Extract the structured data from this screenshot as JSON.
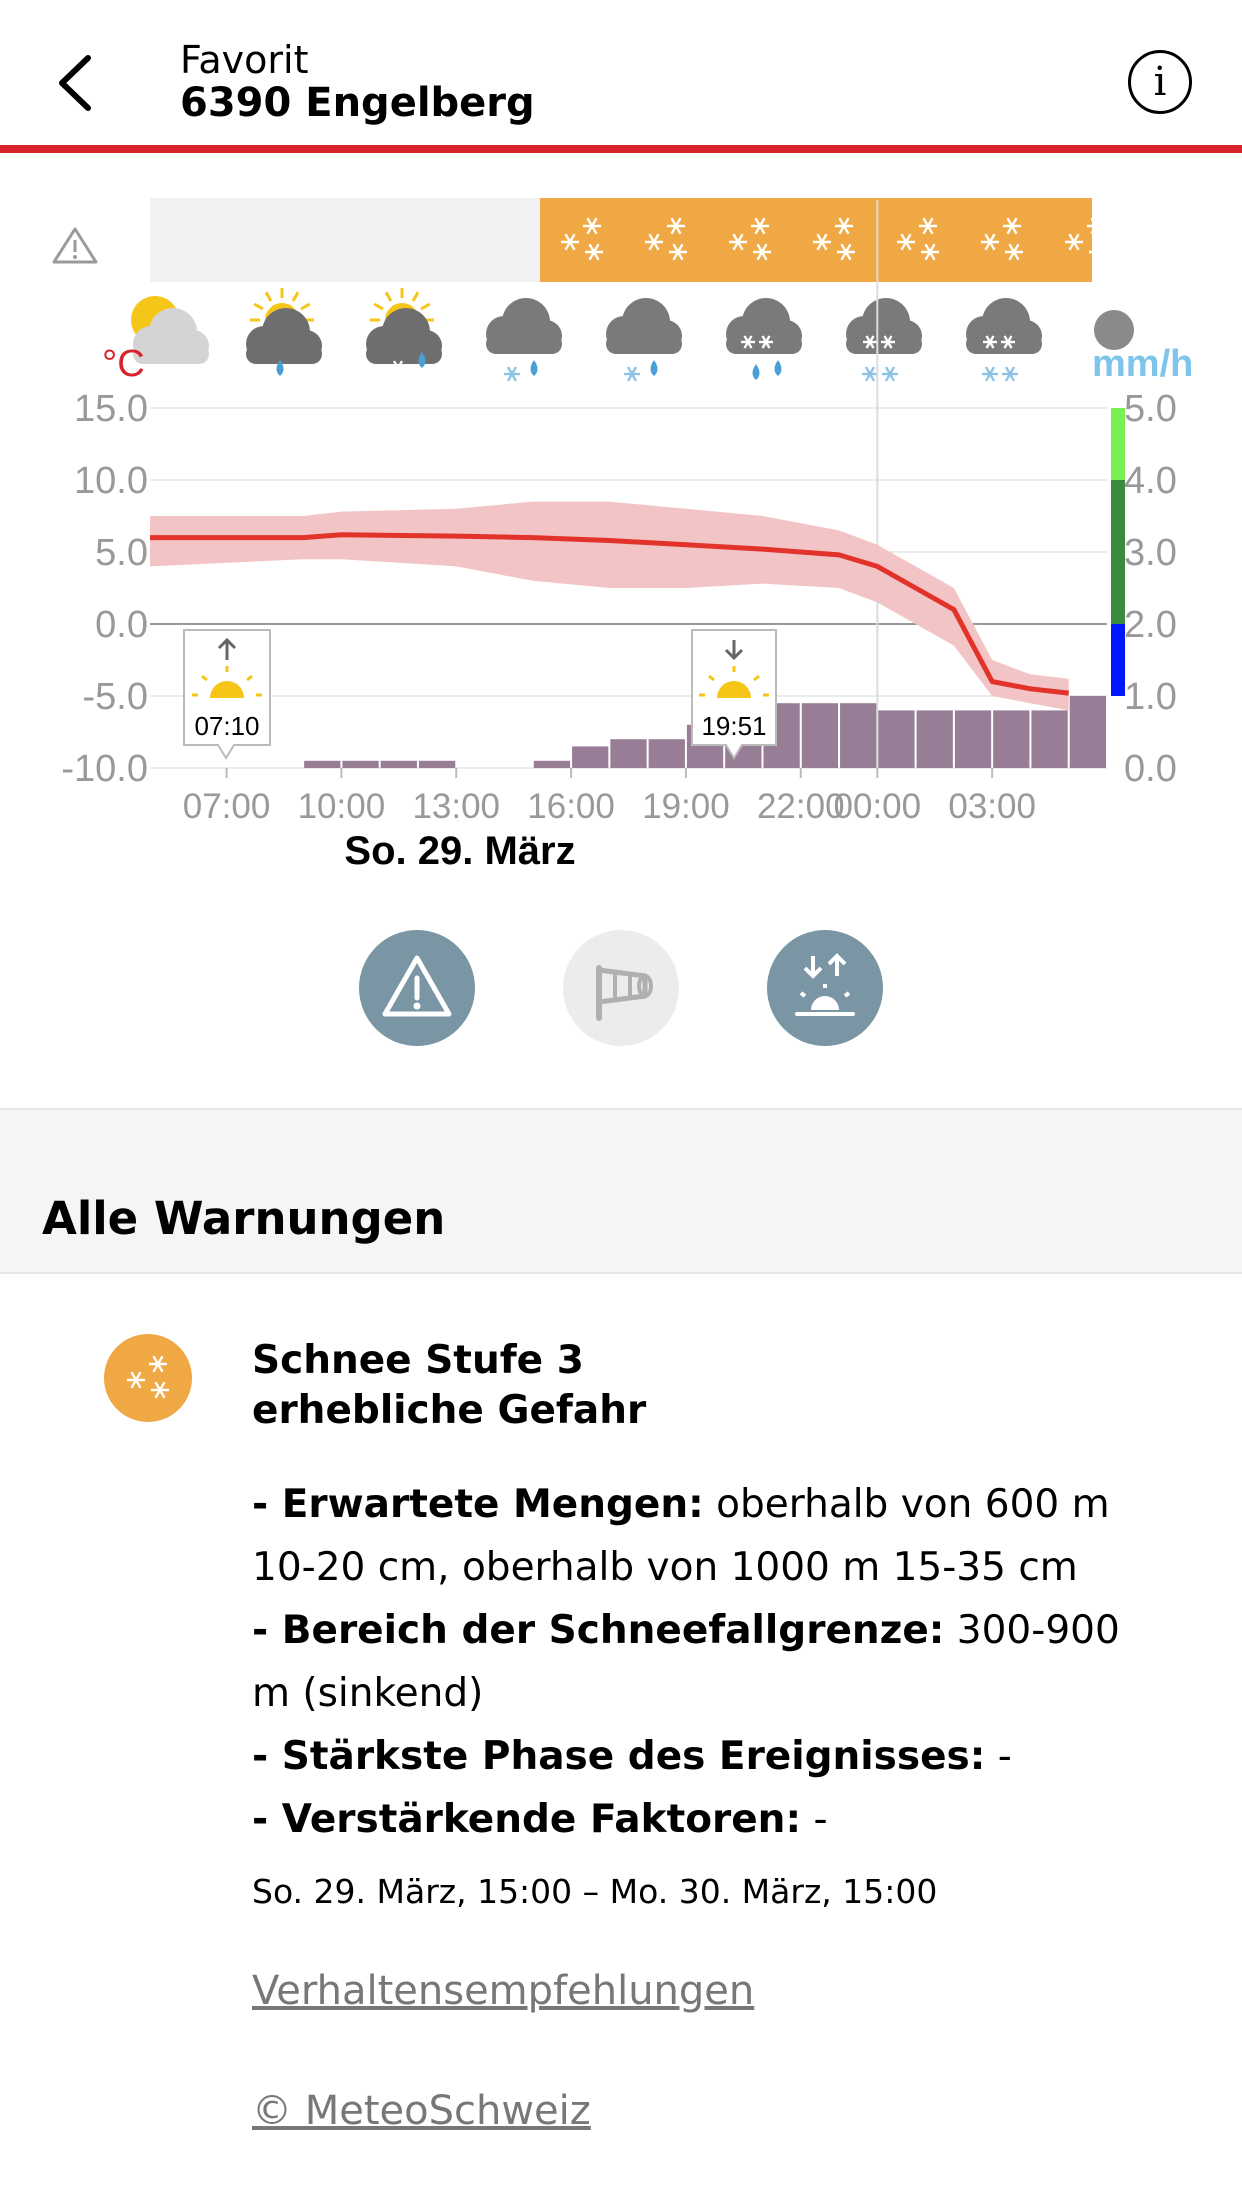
{
  "header": {
    "subtitle": "Favorit",
    "title": "6390 Engelberg"
  },
  "chart": {
    "temp_unit": "°C",
    "precip_unit": "mm/h",
    "date_label": "So. 29. März",
    "sunrise": "07:10",
    "sunset": "19:51",
    "warning_band": "snow",
    "weather_icons": [
      "sun-cloud-icon",
      "sun-cloud-rain-icon",
      "sun-cloud-snow-rain-icon",
      "cloud-snow-rain-icon",
      "cloud-snow-rain-icon",
      "cloud-snow-rain-heavy-icon",
      "cloud-snow-icon",
      "cloud-snow-icon",
      "cloud-partial-icon"
    ]
  },
  "chart_data": {
    "type": "line",
    "x_ticks": [
      "07:00",
      "10:00",
      "13:00",
      "16:00",
      "19:00",
      "22:00",
      "00:00",
      "03:00"
    ],
    "y_left_ticks": [
      "15.0",
      "10.0",
      "5.0",
      "0.0",
      "-5.0",
      "-10.0"
    ],
    "y_right_ticks": [
      "5.0",
      "4.0",
      "3.0",
      "2.0",
      "1.0",
      "0.0"
    ],
    "ylim_left": [
      -10,
      15
    ],
    "ylim_right": [
      0,
      5
    ],
    "temperature": [
      {
        "h": 5,
        "v": 6.0,
        "lo": 4.0,
        "hi": 7.5
      },
      {
        "h": 9,
        "v": 6.0,
        "lo": 4.5,
        "hi": 7.5
      },
      {
        "h": 10,
        "v": 6.2,
        "lo": 4.5,
        "hi": 7.8
      },
      {
        "h": 13,
        "v": 6.1,
        "lo": 4.0,
        "hi": 8.0
      },
      {
        "h": 15,
        "v": 6.0,
        "lo": 3.0,
        "hi": 8.5
      },
      {
        "h": 17,
        "v": 5.8,
        "lo": 2.5,
        "hi": 8.5
      },
      {
        "h": 19,
        "v": 5.5,
        "lo": 2.5,
        "hi": 8.0
      },
      {
        "h": 21,
        "v": 5.2,
        "lo": 2.8,
        "hi": 7.5
      },
      {
        "h": 23,
        "v": 4.8,
        "lo": 2.5,
        "hi": 6.5
      },
      {
        "h": 24,
        "v": 4.0,
        "lo": 1.5,
        "hi": 5.5
      },
      {
        "h": 25,
        "v": 2.5,
        "lo": 0.0,
        "hi": 4.0
      },
      {
        "h": 26,
        "v": 1.0,
        "lo": -1.5,
        "hi": 2.5
      },
      {
        "h": 27,
        "v": -4.0,
        "lo": -5.0,
        "hi": -2.5
      },
      {
        "h": 28,
        "v": -4.5,
        "lo": -5.5,
        "hi": -3.5
      },
      {
        "h": 29,
        "v": -4.8,
        "lo": -6.0,
        "hi": -3.8
      }
    ],
    "precipitation": [
      {
        "h": 9,
        "v": 0.1
      },
      {
        "h": 10,
        "v": 0.1
      },
      {
        "h": 11,
        "v": 0.1
      },
      {
        "h": 12,
        "v": 0.1
      },
      {
        "h": 15,
        "v": 0.1
      },
      {
        "h": 16,
        "v": 0.3
      },
      {
        "h": 17,
        "v": 0.4
      },
      {
        "h": 18,
        "v": 0.4
      },
      {
        "h": 19,
        "v": 0.6
      },
      {
        "h": 20,
        "v": 0.8
      },
      {
        "h": 21,
        "v": 0.9
      },
      {
        "h": 22,
        "v": 0.9
      },
      {
        "h": 23,
        "v": 0.9
      },
      {
        "h": 24,
        "v": 0.8
      },
      {
        "h": 25,
        "v": 0.8
      },
      {
        "h": 26,
        "v": 0.8
      },
      {
        "h": 27,
        "v": 0.8
      },
      {
        "h": 28,
        "v": 0.8
      },
      {
        "h": 29,
        "v": 1.0
      }
    ],
    "intensity_scale": [
      {
        "from": 0,
        "to": 1,
        "color": ""
      },
      {
        "from": 1,
        "to": 2,
        "color": "#0018ff"
      },
      {
        "from": 2,
        "to": 4,
        "color": "#3c8a3e"
      },
      {
        "from": 4,
        "to": 5,
        "color": "#79f052"
      }
    ]
  },
  "tabs": [
    {
      "name": "warnings-tab",
      "icon": "warning-icon",
      "active": true
    },
    {
      "name": "wind-tab",
      "icon": "windsock-icon",
      "active": false
    },
    {
      "name": "sun-tab",
      "icon": "sunrise-sunset-icon",
      "active": true
    }
  ],
  "section": {
    "title": "Alle Warnungen"
  },
  "warning": {
    "icon": "snowflakes-icon",
    "color": "#f0a844",
    "title_line1": "Schnee Stufe 3",
    "title_line2": "erhebliche Gefahr",
    "d1_label": "- Erwartete Mengen:",
    "d1_text": " oberhalb von 600 m 10-20 cm, oberhalb von 1000 m 15-35 cm",
    "d2_label": "- Bereich der Schneefallgrenze:",
    "d2_text": " 300-900 m (sinkend)",
    "d3_label": "- Stärkste Phase des Ereignisses:",
    "d3_text": " -",
    "d4_label": "- Verstärkende Faktoren:",
    "d4_text": " -",
    "date": "So. 29. März, 15:00 – Mo. 30. März, 15:00",
    "link": "Verhaltensempfehlungen",
    "copyright": "© MeteoSchweiz"
  }
}
